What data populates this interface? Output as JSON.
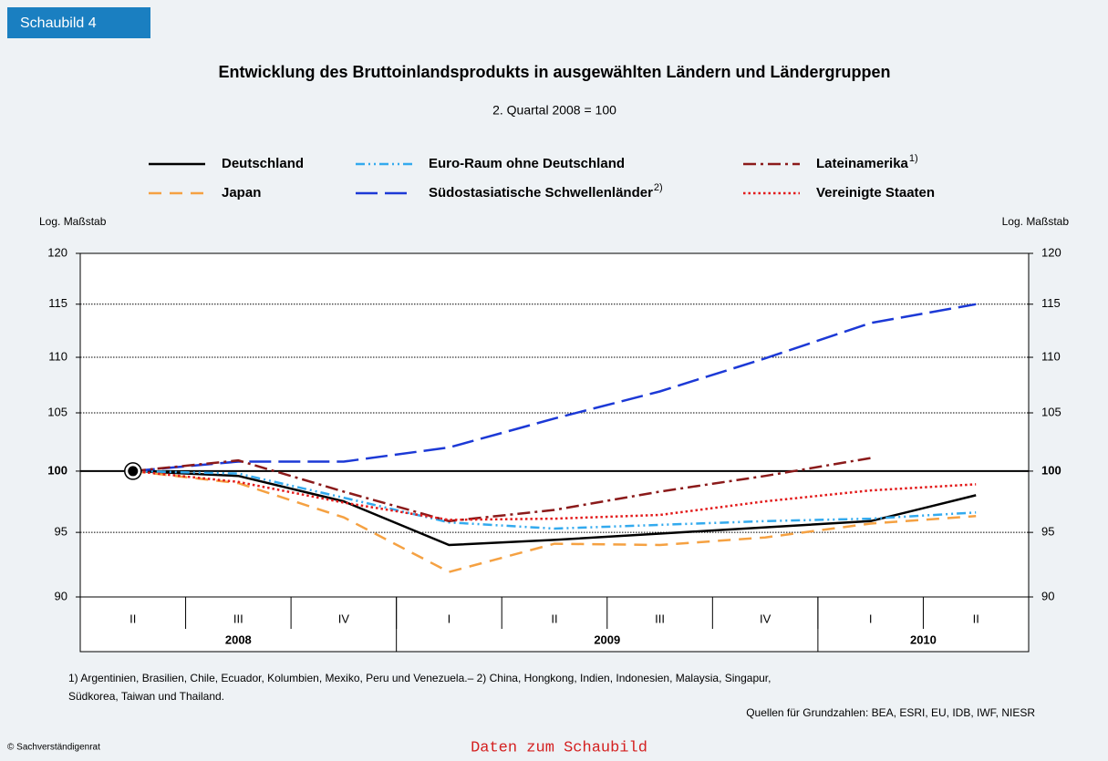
{
  "tab": "Schaubild 4",
  "chart_data": {
    "type": "line",
    "title": "Entwicklung des Bruttoinlandsprodukts in ausgewählten Ländern und Ländergruppen",
    "subtitle": "2. Quartal 2008 = 100",
    "axis_note": "Log. Maßstab",
    "yscale": "log",
    "categories": [
      "II",
      "III",
      "IV",
      "I",
      "II",
      "III",
      "IV",
      "I",
      "II"
    ],
    "year_groups": [
      {
        "label": "2008",
        "span": 3
      },
      {
        "label": "2009",
        "span": 4
      },
      {
        "label": "2010",
        "span": 2
      }
    ],
    "ylim": [
      90,
      120
    ],
    "yticks": [
      90,
      95,
      100,
      105,
      110,
      115,
      120
    ],
    "grid": true,
    "series": [
      {
        "name": "Deutschland",
        "color": "#000000",
        "dash": "solid",
        "values": [
          100,
          99.6,
          97.5,
          94.0,
          94.4,
          94.9,
          95.4,
          95.9,
          98.0
        ]
      },
      {
        "name": "Japan",
        "color": "#f5a142",
        "dash": "dashed",
        "values": [
          100,
          99.0,
          96.2,
          91.9,
          94.1,
          94.0,
          94.6,
          95.7,
          96.3
        ]
      },
      {
        "name": "Euro-Raum ohne Deutschland",
        "color": "#33aaee",
        "dash": "dashdotdot",
        "values": [
          100,
          99.8,
          97.8,
          95.8,
          95.3,
          95.6,
          95.9,
          96.1,
          96.6
        ]
      },
      {
        "name": "Südostasiatische Schwellenländer",
        "footnote": "2)",
        "color": "#1c39d6",
        "dash": "longdash",
        "values": [
          100,
          100.8,
          100.8,
          102.0,
          104.5,
          106.9,
          109.9,
          113.2,
          115.0
        ]
      },
      {
        "name": "Lateinamerika",
        "footnote": "1)",
        "color": "#8b1a1a",
        "dash": "dashdot",
        "values": [
          100,
          100.9,
          98.3,
          95.9,
          96.8,
          98.3,
          99.6,
          101.1,
          null
        ]
      },
      {
        "name": "Vereinigte Staaten",
        "color": "#e31b1b",
        "dash": "dotted",
        "values": [
          100,
          99.1,
          97.4,
          96.0,
          96.1,
          96.4,
          97.5,
          98.4,
          98.9
        ]
      }
    ]
  },
  "footnotes": [
    "1) Argentinien, Brasilien, Chile, Ecuador, Kolumbien, Mexiko, Peru und Venezuela.– 2) China, Hongkong, Indien, Indonesien, Malaysia, Singapur,",
    "Südkorea, Taiwan und Thailand."
  ],
  "source": "Quellen für Grundzahlen: BEA, ESRI, EU, IDB, IWF, NIESR",
  "copyright": "© Sachverständigenrat",
  "link": "Daten zum Schaubild"
}
